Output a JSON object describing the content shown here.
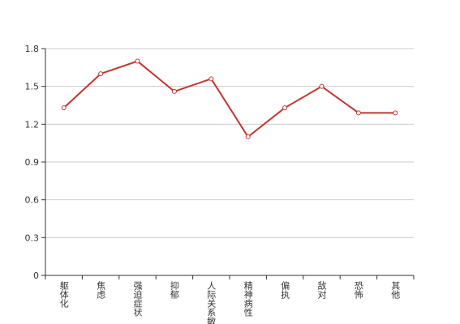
{
  "chart_data": {
    "type": "line",
    "categories": [
      "躯体化",
      "焦虑",
      "强迫症状",
      "抑郁",
      "人际关系敏感",
      "精神病性",
      "偏执",
      "敌对",
      "恐怖",
      "其他"
    ],
    "series": [
      {
        "color": "#c23531",
        "values": [
          1.33,
          1.6,
          1.7,
          1.46,
          1.56,
          1.1,
          1.33,
          1.5,
          1.29,
          1.29
        ]
      }
    ],
    "ylim": [
      0,
      1.8
    ],
    "yticks": [
      0,
      0.3,
      0.6,
      0.9,
      1.2,
      1.5,
      1.8
    ],
    "grid": true
  }
}
